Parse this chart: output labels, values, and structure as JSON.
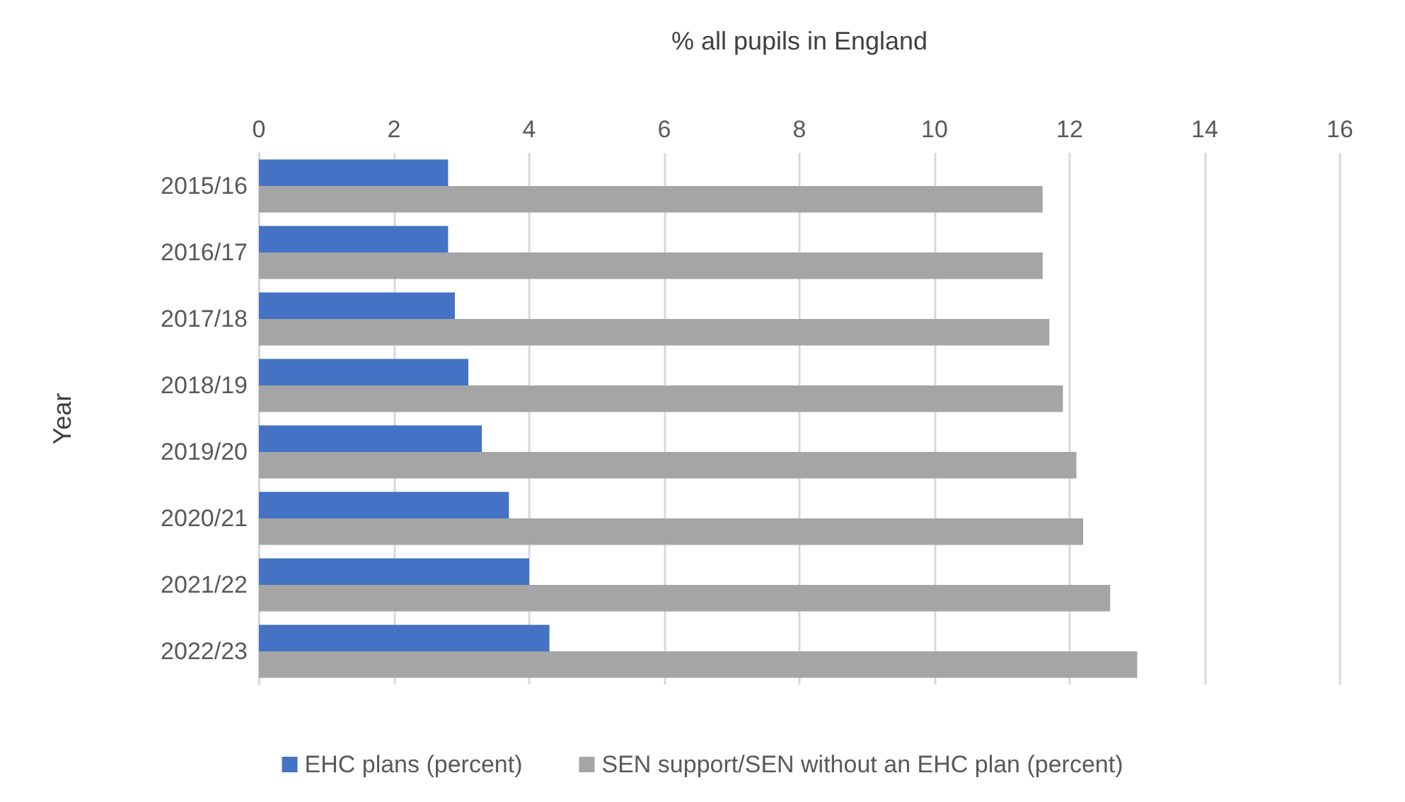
{
  "chart_data": {
    "type": "bar",
    "orientation": "horizontal",
    "xlabel": "% all pupils in England",
    "ylabel": "Year",
    "categories": [
      "2015/16",
      "2016/17",
      "2017/18",
      "2018/19",
      "2019/20",
      "2020/21",
      "2021/22",
      "2022/23"
    ],
    "series": [
      {
        "name": "EHC plans (percent)",
        "color": "#4472c4",
        "values": [
          2.8,
          2.8,
          2.9,
          3.1,
          3.3,
          3.7,
          4.0,
          4.3
        ]
      },
      {
        "name": "SEN support/SEN without an EHC plan (percent)",
        "color": "#a5a5a5",
        "values": [
          11.6,
          11.6,
          11.7,
          11.9,
          12.1,
          12.2,
          12.6,
          13.0
        ]
      }
    ],
    "xlim": [
      0,
      16
    ],
    "xticks": [
      0,
      2,
      4,
      6,
      8,
      10,
      12,
      14,
      16
    ],
    "grid": "x",
    "legend": "bottom"
  }
}
